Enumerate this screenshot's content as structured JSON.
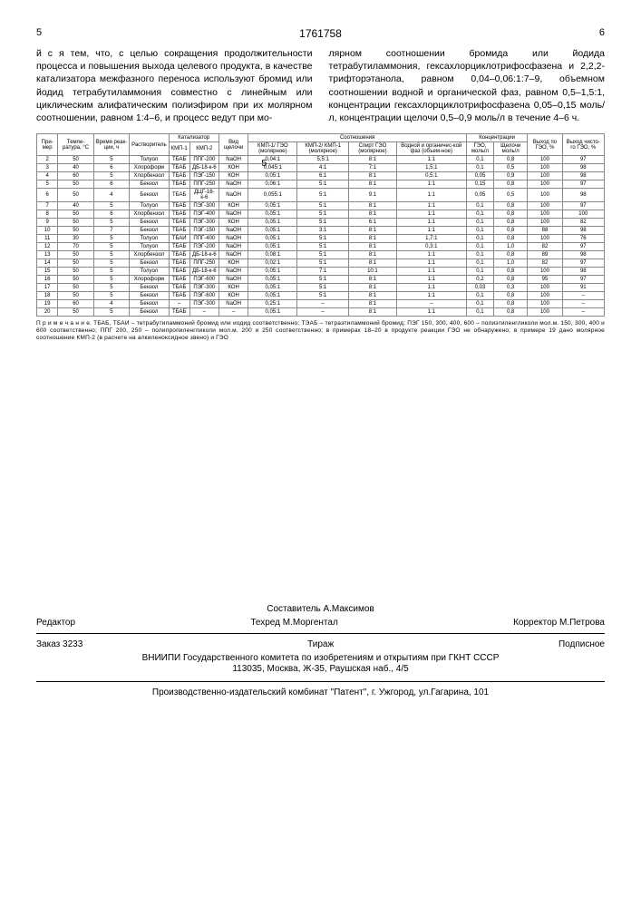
{
  "header": {
    "left_page": "5",
    "docnum": "1761758",
    "right_page": "6"
  },
  "text": {
    "left_col": "й с я  тем, что, с целью сокращения продолжительности процесса и повышения выхода целевого продукта, в качестве катализатора межфазного переноса используют бромид или йодид тетрабутиламмония совместно с линейным или циклическим алифатическим полиэфиром при их молярном соотношении, равном 1:4–6, и процесс ведут при мо-",
    "right_col": "лярном соотношении бромида или йодида тетрабутиламмония, гексахлорциклотрифосфазена и 2,2,2-трифторэтанола, равном 0,04–0,06:1:7–9, объемном соотношении водной и органической фаз, равном 0,5–1,5:1, концентрации гексахлорциклотрифосфазена 0,05–0,15 моль/л, концентрации щелочи 0,5–0,9 моль/л в течение 4–6 ч.",
    "margin_5": "5"
  },
  "table": {
    "headers": {
      "h_primer": "При-мер",
      "h_temp": "Темпе-ратура, °С",
      "h_time": "Время реак-ции, ч",
      "h_solv": "Растворитель",
      "h_cat": "Катализатор",
      "h_cat1": "КМП-1",
      "h_cat2": "КМП-2",
      "h_alk": "Вид щелочи",
      "h_ratio": "Соотношения",
      "h_r1": "КМП-1/ ГЭО (молярное)",
      "h_r2": "КМП-2/ КМП-1 (молярное)",
      "h_r3": "Спирт ГЭО (молярное)",
      "h_r4": "Водной и органичес-кой фаз (объем-ное)",
      "h_conc": "Концентрации",
      "h_c1": "ГЭО, моль/л",
      "h_c2": "Щелочи моль/л",
      "h_yield": "Выход по ГЭО, %",
      "h_pure": "Выход чисто-го ГЭО, %"
    },
    "rows": [
      [
        "2",
        "50",
        "5",
        "Толуол",
        "ТБАБ",
        "ППГ-200",
        "NaOH",
        "0,04:1",
        "5,5:1",
        "8:1",
        "1:1",
        "0,1",
        "0,8",
        "100",
        "97"
      ],
      [
        "3",
        "40",
        "6",
        "Хлороформ",
        "ТБАБ",
        "ДБ-18-к-6",
        "КОН",
        "0,045:1",
        "4:1",
        "7:1",
        "1,5:1",
        "0,1",
        "0,5",
        "100",
        "98"
      ],
      [
        "4",
        "60",
        "5",
        "Хлорбензол",
        "ТБАБ",
        "ПЭГ-150",
        "КОН",
        "0,05:1",
        "6:1",
        "8:1",
        "0,5:1",
        "0,05",
        "0,9",
        "100",
        "98"
      ],
      [
        "5",
        "50",
        "6",
        "Бензол",
        "ТБАБ",
        "ППГ-250",
        "NaOH",
        "0,06:1",
        "5:1",
        "8:1",
        "1:1",
        "0,15",
        "0,8",
        "100",
        "97"
      ],
      [
        "6",
        "50",
        "4",
        "Бензол",
        "ТБАБ",
        "ДЦГ-18-к-6",
        "NaOH",
        "0,055:1",
        "5:1",
        "9:1",
        "1:1",
        "0,05",
        "0,5",
        "100",
        "98"
      ],
      [
        "7",
        "40",
        "5",
        "Толуол",
        "ТБАБ",
        "ПЭГ-300",
        "КОН",
        "0,05:1",
        "5:1",
        "8:1",
        "1:1",
        "0,1",
        "0,8",
        "100",
        "97"
      ],
      [
        "8",
        "50",
        "6",
        "Хлорбензол",
        "ТБАБ",
        "ПЭГ-400",
        "NaOH",
        "0,05:1",
        "5:1",
        "8:1",
        "1:1",
        "0,1",
        "0,8",
        "100",
        "100"
      ],
      [
        "9",
        "50",
        "5",
        "Бензол",
        "ТБАБ",
        "ПЭГ-300",
        "КОН",
        "0,05:1",
        "5:1",
        "6:1",
        "1:1",
        "0,1",
        "0,8",
        "100",
        "82"
      ],
      [
        "10",
        "50",
        "7",
        "Бензол",
        "ТБАБ",
        "ПЭГ-150",
        "NaOH",
        "0,05:1",
        "3:1",
        "8:1",
        "1:1",
        "0,1",
        "0,8",
        "88",
        "98"
      ],
      [
        "11",
        "30",
        "5",
        "Толуол",
        "ТБАИ",
        "ППГ-400",
        "NaOH",
        "0,05:1",
        "5:1",
        "8:1",
        "1,7:1",
        "0,1",
        "0,8",
        "100",
        "76"
      ],
      [
        "12",
        "70",
        "5",
        "Толуол",
        "ТБАБ",
        "ПЭГ-200",
        "NaOH",
        "0,05:1",
        "5:1",
        "8:1",
        "0,3:1",
        "0,1",
        "1,0",
        "82",
        "97"
      ],
      [
        "13",
        "50",
        "5",
        "Хлорбензол",
        "ТБАБ",
        "ДБ-18-к-6",
        "NaOH",
        "0,08:1",
        "5:1",
        "8:1",
        "1:1",
        "0,1",
        "0,8",
        "89",
        "98"
      ],
      [
        "14",
        "50",
        "5",
        "Бензол",
        "ТБАБ",
        "ППГ-250",
        "КОН",
        "0,02:1",
        "5:1",
        "8:1",
        "1:1",
        "0,1",
        "1,0",
        "82",
        "97"
      ],
      [
        "15",
        "50",
        "5",
        "Толуол",
        "ТБАБ",
        "ДБ-18-к-6",
        "NaOH",
        "0,05:1",
        "7:1",
        "10:1",
        "1:1",
        "0,1",
        "0,8",
        "100",
        "98"
      ],
      [
        "16",
        "50",
        "5",
        "Хлороформ",
        "ТБАБ",
        "ПЭГ-600",
        "NaOH",
        "0,05:1",
        "5:1",
        "8:1",
        "1:1",
        "0,2",
        "0,8",
        "95",
        "97"
      ],
      [
        "17",
        "50",
        "5",
        "Бензол",
        "ТБАБ",
        "ПЭГ-300",
        "КОН",
        "0,05:1",
        "5:1",
        "8:1",
        "1:1",
        "0,03",
        "0,3",
        "100",
        "91"
      ],
      [
        "18",
        "50",
        "5",
        "Бензол",
        "ТБАБ",
        "ПЭГ-600",
        "КОН",
        "0,05:1",
        "5:1",
        "8:1",
        "1:1",
        "0,1",
        "0,8",
        "100",
        "–"
      ],
      [
        "19",
        "60",
        "4",
        "Бензол",
        "–",
        "ПЭГ-300",
        "NaOH",
        "0,25:1",
        "–",
        "8:1",
        "–",
        "0,1",
        "0,8",
        "100",
        "–"
      ],
      [
        "20",
        "50",
        "5",
        "Бензол",
        "ТБАБ",
        "–",
        "–",
        "0,05:1",
        "–",
        "8:1",
        "1:1",
        "0,1",
        "0,8",
        "100",
        "–"
      ]
    ]
  },
  "footnote": "П р и м е ч а н и е.  ТБАБ, ТБАИ – тетрабутиламмоний бромид или иодид соответственно; ТЭАБ – тетраэтиламмоний бромид; ПЭГ 150, 300, 400, 600 – полиэтиленгликоли мол.м. 150, 300, 400 и 600 соответственно; ППГ 200, 250 – полипропиленгликоли мол.м. 200 и 250 соответственно; в примерах 18–20 в продукте реакции ГЭО не обнаружено; в примере 19 дано молярное соотношение КМП-2 (в расчете на алкиленоксидное звено) и ГЭО",
  "colophon": {
    "compiler": "Составитель  А.Максимов",
    "editor_label": "Редактор",
    "tech": "Техред  М.Моргентал",
    "corrector": "Корректор  М.Петрова",
    "order": "Заказ  3233",
    "tirazh": "Тираж",
    "signed": "Подписное",
    "org1": "ВНИИПИ Государственного комитета по изобретениям и открытиям при ГКНТ СССР",
    "org2": "113035, Москва, Ж-35, Раушская наб., 4/5",
    "printer": "Производственно-издательский комбинат \"Патент\", г. Ужгород, ул.Гагарина, 101"
  }
}
